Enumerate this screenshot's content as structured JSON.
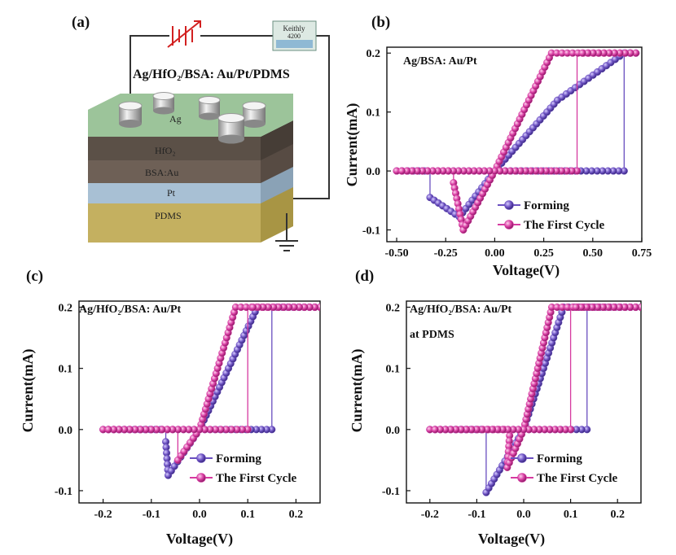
{
  "colors": {
    "forming": "#6a4fc0",
    "first_cycle": "#d63aa0",
    "wire": "#333333",
    "battery": "#d22020"
  },
  "schematic": {
    "panel_label": "(a)",
    "device_label": "Ag/HfO₂/BSA: Au/Pt/PDMS",
    "instrument_label_line1": "Keithly",
    "instrument_label_line2": "4200",
    "layers": {
      "electrode": "Ag",
      "hfo2": "HfO₂",
      "bsa": "BSA:Au",
      "pt": "Pt",
      "pdms": "PDMS"
    }
  },
  "chart_data": [
    {
      "panel": "(b)",
      "type": "line",
      "sample": "Ag/BSA: Au/Pt",
      "xlabel": "Voltage(V)",
      "ylabel": "Current(mA)",
      "xlim": [
        -0.55,
        0.75
      ],
      "ylim": [
        -0.12,
        0.21
      ],
      "xticks": [
        "-0.50",
        "-0.25",
        "0.00",
        "0.25",
        "0.50",
        "0.75"
      ],
      "xtick_values": [
        -0.5,
        -0.25,
        0.0,
        0.25,
        0.5,
        0.75
      ],
      "yticks": [
        "-0.1",
        "0.0",
        "0.1",
        "0.2"
      ],
      "ytick_values": [
        -0.1,
        0.0,
        0.1,
        0.2
      ],
      "series": [
        {
          "name": "Forming",
          "x": [
            -0.5,
            -0.33,
            -0.33,
            -0.18,
            0.0,
            0.32,
            0.66,
            0.72,
            0.72,
            0.66,
            0.66,
            0.0,
            -0.5
          ],
          "y": [
            0.0,
            0.0,
            -0.045,
            -0.078,
            0.0,
            0.12,
            0.2,
            0.2,
            0.2,
            0.2,
            0.0,
            0.0,
            0.0
          ]
        },
        {
          "name": "The First Cycle",
          "x": [
            -0.5,
            -0.21,
            -0.21,
            -0.16,
            0.0,
            0.29,
            0.72,
            0.72,
            0.42,
            0.42,
            0.0,
            -0.5
          ],
          "y": [
            0.0,
            0.0,
            -0.02,
            -0.1,
            0.0,
            0.2,
            0.2,
            0.2,
            0.2,
            0.0,
            0.0,
            0.0
          ]
        }
      ]
    },
    {
      "panel": "(c)",
      "type": "line",
      "sample": "Ag/HfO₂/BSA: Au/Pt",
      "xlabel": "Voltage(V)",
      "ylabel": "Current(mA)",
      "xlim": [
        -0.25,
        0.25
      ],
      "ylim": [
        -0.12,
        0.21
      ],
      "xticks": [
        "-0.2",
        "-0.1",
        "0.0",
        "0.1",
        "0.2"
      ],
      "xtick_values": [
        -0.2,
        -0.1,
        0.0,
        0.1,
        0.2
      ],
      "yticks": [
        "-0.1",
        "0.0",
        "0.1",
        "0.2"
      ],
      "ytick_values": [
        -0.1,
        0.0,
        0.1,
        0.2
      ],
      "series": [
        {
          "name": "Forming",
          "x": [
            -0.2,
            -0.07,
            -0.07,
            -0.065,
            0.0,
            0.12,
            0.25,
            0.15,
            0.15,
            0.0,
            -0.2
          ],
          "y": [
            0.0,
            0.0,
            -0.02,
            -0.075,
            0.0,
            0.2,
            0.2,
            0.2,
            0.0,
            0.0,
            0.0
          ]
        },
        {
          "name": "The First Cycle",
          "x": [
            -0.2,
            -0.045,
            -0.045,
            -0.045,
            0.0,
            0.075,
            0.25,
            0.1,
            0.1,
            0.0,
            -0.2
          ],
          "y": [
            0.0,
            0.0,
            -0.01,
            -0.05,
            0.0,
            0.2,
            0.2,
            0.2,
            0.0,
            0.0,
            0.0
          ]
        }
      ]
    },
    {
      "panel": "(d)",
      "type": "line",
      "sample": "Ag/HfO₂/BSA: Au/Pt",
      "annotation": "at PDMS",
      "xlabel": "Voltage(V)",
      "ylabel": "Current(mA)",
      "xlim": [
        -0.25,
        0.25
      ],
      "ylim": [
        -0.12,
        0.21
      ],
      "xticks": [
        "-0.2",
        "-0.1",
        "0.0",
        "0.1",
        "0.2"
      ],
      "xtick_values": [
        -0.2,
        -0.1,
        0.0,
        0.1,
        0.2
      ],
      "yticks": [
        "-0.1",
        "0.0",
        "0.1",
        "0.2"
      ],
      "ytick_values": [
        -0.1,
        0.0,
        0.1,
        0.2
      ],
      "series": [
        {
          "name": "Forming",
          "x": [
            -0.2,
            -0.08,
            -0.08,
            -0.08,
            0.0,
            0.085,
            0.25,
            0.135,
            0.135,
            0.0,
            -0.2
          ],
          "y": [
            0.0,
            0.0,
            -0.02,
            -0.103,
            0.0,
            0.2,
            0.2,
            0.2,
            0.0,
            0.0,
            0.0
          ]
        },
        {
          "name": "The First Cycle",
          "x": [
            -0.2,
            -0.03,
            -0.03,
            -0.035,
            0.0,
            0.06,
            0.25,
            0.1,
            0.1,
            0.0,
            -0.2
          ],
          "y": [
            0.0,
            0.0,
            -0.01,
            -0.062,
            0.0,
            0.2,
            0.2,
            0.2,
            0.0,
            0.0,
            0.0
          ]
        }
      ]
    }
  ]
}
